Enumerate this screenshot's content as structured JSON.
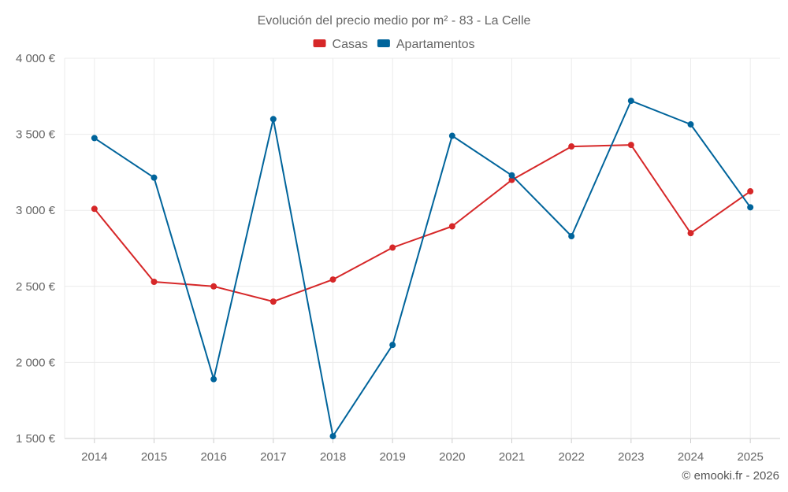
{
  "chart_data": {
    "type": "line",
    "title": "Evolución del precio medio por m² - 83 - La Celle",
    "categories": [
      "2014",
      "2015",
      "2016",
      "2017",
      "2018",
      "2019",
      "2020",
      "2021",
      "2022",
      "2023",
      "2024",
      "2025"
    ],
    "series": [
      {
        "name": "Casas",
        "color": "#d62728",
        "values": [
          3010,
          2530,
          2500,
          2400,
          2545,
          2755,
          2895,
          3200,
          3420,
          3430,
          2850,
          3125
        ]
      },
      {
        "name": "Apartamentos",
        "color": "#00649b",
        "values": [
          3475,
          3215,
          1890,
          3600,
          1515,
          2115,
          3490,
          3230,
          2830,
          3720,
          3565,
          3020
        ]
      }
    ],
    "ylim": [
      1500,
      4000
    ],
    "yticks": [
      1500,
      2000,
      2500,
      3000,
      3500,
      4000
    ],
    "ytick_labels": [
      "1 500 €",
      "2 000 €",
      "2 500 €",
      "3 000 €",
      "3 500 €",
      "4 000 €"
    ],
    "xlabel": "",
    "ylabel": "",
    "grid": true,
    "legend_position": "top-center"
  },
  "credit": "© emooki.fr - 2026"
}
